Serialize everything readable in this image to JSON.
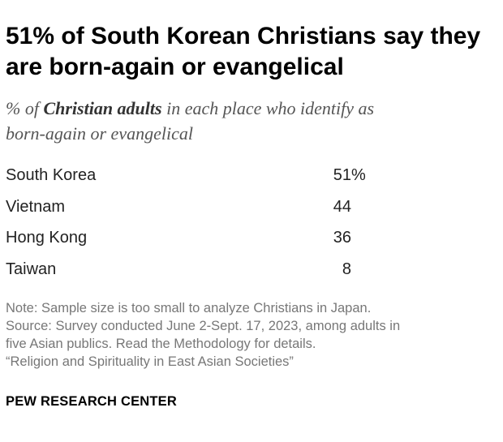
{
  "title_line1": "51% of South Korean Christians say they",
  "title_line2": "are born-again or evangelical",
  "subtitle_pre": "% of ",
  "subtitle_bold": "Christian adults",
  "subtitle_post": " in each place who identify as",
  "subtitle_line2": "born-again or evangelical",
  "chart_data": {
    "type": "table",
    "title": "51% of South Korean Christians say they are born-again or evangelical",
    "subtitle": "% of Christian adults in each place who identify as born-again or evangelical",
    "categories": [
      "South Korea",
      "Vietnam",
      "Hong Kong",
      "Taiwan"
    ],
    "values": [
      51,
      44,
      36,
      8
    ],
    "value_labels": [
      "51",
      "44",
      "36",
      "8"
    ],
    "first_value_suffix": "%"
  },
  "notes": [
    "Note: Sample size is too small to analyze Christians in Japan.",
    "Source: Survey conducted June 2-Sept. 17, 2023, among adults in",
    "five Asian publics. Read the Methodology for details.",
    "“Religion and Spirituality in East Asian Societies”"
  ],
  "brand": "PEW RESEARCH CENTER"
}
